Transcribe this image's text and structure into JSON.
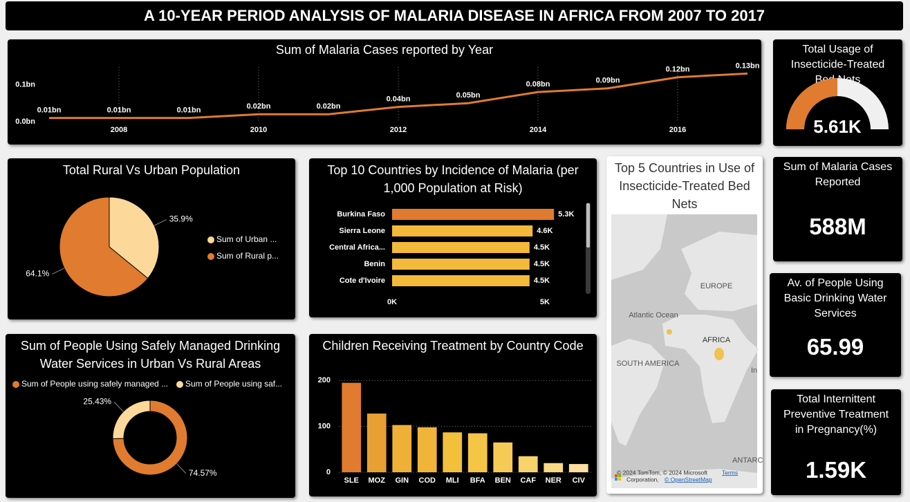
{
  "title": "A 10-YEAR PERIOD ANALYSIS OF MALARIA DISEASE IN AFRICA FROM 2007 TO 2017",
  "chart_data": [
    {
      "type": "line",
      "title": "Sum of Malaria Cases reported by Year",
      "x": [
        2007,
        2008,
        2009,
        2010,
        2011,
        2012,
        2013,
        2014,
        2015,
        2016,
        2017
      ],
      "values": [
        0.01,
        0.01,
        0.01,
        0.02,
        0.02,
        0.04,
        0.05,
        0.08,
        0.09,
        0.12,
        0.13
      ],
      "value_labels": [
        "0.01bn",
        "0.01bn",
        "0.01bn",
        "0.02bn",
        "0.02bn",
        "0.04bn",
        "0.05bn",
        "0.08bn",
        "0.09bn",
        "0.12bn",
        "0.13bn"
      ],
      "color": "#e07b2f",
      "xlim": [
        2007,
        2017
      ],
      "xticks": [
        2008,
        2010,
        2012,
        2014,
        2016
      ],
      "ylim": [
        0,
        0.14
      ],
      "yticks": [
        {
          "value": 0,
          "label": "0.0bn"
        },
        {
          "value": 0.1,
          "label": "0.1bn"
        }
      ],
      "grid": true
    },
    {
      "type": "pie",
      "title": "Total Rural Vs Urban Population",
      "categories": [
        "Sum of Urban ...",
        "Sum of Rural p..."
      ],
      "values": [
        35.9,
        64.1
      ],
      "value_labels": [
        "35.9%",
        "64.1%"
      ],
      "colors": [
        "#fcd99a",
        "#e07b2f"
      ]
    },
    {
      "type": "barh",
      "title": "Top 10 Countries by Incidence of Malaria (per 1,000 Population at Risk)",
      "categories": [
        "Burkina Faso",
        "Sierra Leone",
        "Central Africa...",
        "Benin",
        "Cote d'Ivoire"
      ],
      "values": [
        5300,
        4600,
        4500,
        4500,
        4500
      ],
      "value_labels": [
        "5.3K",
        "4.6K",
        "4.5K",
        "4.5K",
        "4.5K"
      ],
      "colors": [
        "#e07b2f",
        "#f2b93b",
        "#f2b93b",
        "#f2b93b",
        "#f2b93b"
      ],
      "xlim": [
        0,
        5500
      ],
      "xticks": [
        {
          "value": 0,
          "label": "0K"
        },
        {
          "value": 5000,
          "label": "5K"
        }
      ]
    },
    {
      "type": "donut",
      "title": "Sum of People Using Safely Managed Drinking Water Services in Urban Vs Rural Areas",
      "categories": [
        "Sum of People using safely managed ...",
        "Sum of People using saf..."
      ],
      "values": [
        74.57,
        25.43
      ],
      "value_labels": [
        "74.57%",
        "25.43%"
      ],
      "colors": [
        "#e07b2f",
        "#fcd99a"
      ]
    },
    {
      "type": "bar",
      "title": "Children Receiving Treatment by Country Code",
      "categories": [
        "SLE",
        "MOZ",
        "GIN",
        "COD",
        "MLI",
        "BFA",
        "BEN",
        "CAF",
        "NER",
        "CIV"
      ],
      "values": [
        195,
        128,
        103,
        98,
        87,
        85,
        65,
        35,
        20,
        18
      ],
      "colors": [
        "#e07b2f",
        "#e8a032",
        "#eeb036",
        "#f0b538",
        "#f3c03c",
        "#f5c546",
        "#f6cb55",
        "#f8d26b",
        "#fad983",
        "#fde0a0"
      ],
      "ylim": [
        0,
        205
      ],
      "yticks": [
        0,
        100,
        200
      ],
      "grid": true
    }
  ],
  "cards": [
    {
      "title": "Total Usage of Insecticide-Treated Bed Nets",
      "value": 5610,
      "value_label": "5.61K",
      "range": [
        0,
        11220
      ]
    },
    {
      "title": "Sum of Malaria Cases Reported",
      "value": 588000000,
      "value_label": "588M"
    },
    {
      "title": "Av. of People Using Basic Drinking Water Services",
      "value": 65.99
    },
    {
      "title": "Total Internittent Preventive Treatment in Pregnancy(%)",
      "value": 1590,
      "value_label": "1.59K"
    }
  ],
  "map": {
    "title": "Top 5 Countries in Use of Insecticide-Treated Bed Nets",
    "labels": [
      "EUROPE",
      "Atlantic Ocean",
      "AFRICA",
      "SOUTH AMERICA",
      "ANTARC",
      "In"
    ],
    "attribution": [
      "© 2024 TomTom, © 2024 Microsoft",
      "Corporation,",
      "© OpenStreetMap",
      "Terms"
    ]
  }
}
